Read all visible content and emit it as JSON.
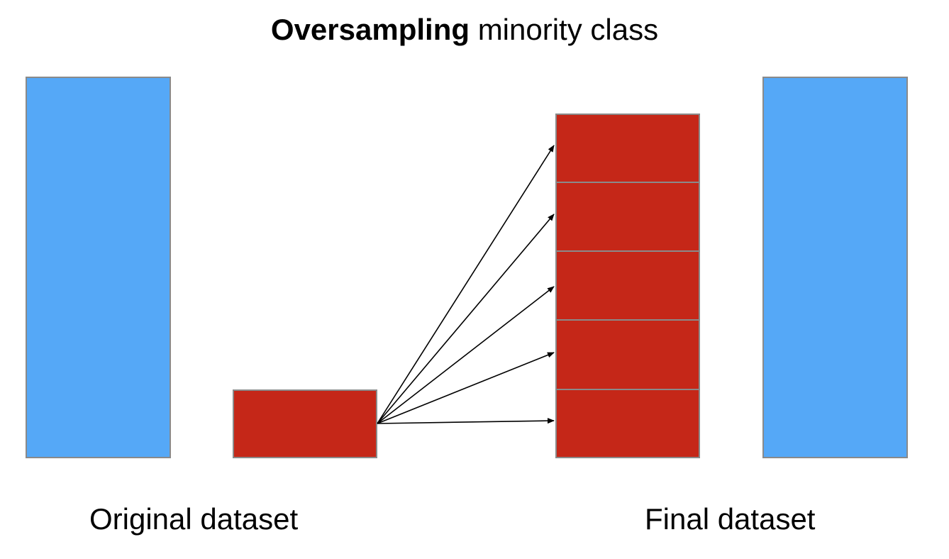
{
  "title": {
    "bold_text": "Oversampling",
    "regular_text": "minority class"
  },
  "captions": {
    "original": "Original dataset",
    "final": "Final dataset"
  },
  "colors": {
    "majority_class": "#55a8f7",
    "minority_class": "#c52718",
    "box_border": "#8a8a8a",
    "arrow": "#000000"
  },
  "diagram": {
    "original_dataset": [
      "majority-class-block",
      "minority-class-block"
    ],
    "final_dataset": [
      "oversampled-minority-stack (5 copies)",
      "majority-class-block"
    ],
    "oversampled_copies": 5
  }
}
